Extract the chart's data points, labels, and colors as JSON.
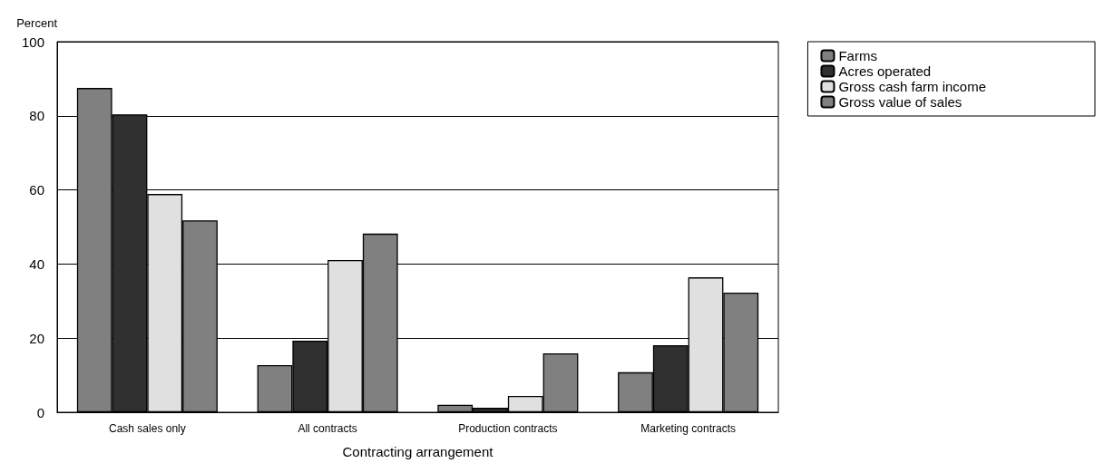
{
  "chart_data": {
    "type": "bar",
    "xlabel": "Contracting arrangement",
    "ylabel": "Percent",
    "categories": [
      "Cash sales only",
      "All contracts",
      "Production contracts",
      "Marketing contracts"
    ],
    "series": [
      {
        "name": "Farms",
        "color": "#808080",
        "values": [
          87.5,
          12.7,
          2.0,
          10.8
        ]
      },
      {
        "name": "Acres operated",
        "color": "#303030",
        "values": [
          80.4,
          19.3,
          1.2,
          18.1
        ]
      },
      {
        "name": "Gross cash farm income",
        "color": "#e0e0e0",
        "values": [
          58.9,
          41.1,
          4.4,
          36.4
        ]
      },
      {
        "name": "Gross value of sales",
        "color": "#808080",
        "values": [
          51.8,
          48.2,
          15.9,
          32.3
        ]
      }
    ],
    "ylim": [
      0,
      100
    ],
    "yticks": [
      0,
      20,
      40,
      60,
      80,
      100
    ],
    "grid": "y",
    "legend": "top right"
  }
}
